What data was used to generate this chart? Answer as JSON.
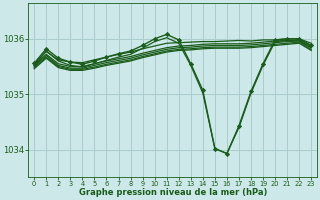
{
  "background_color": "#cce8e8",
  "grid_color": "#aacccc",
  "line_color": "#1a5c1a",
  "marker_color": "#1a5c1a",
  "xlabel": "Graphe pression niveau de la mer (hPa)",
  "xlim": [
    -0.5,
    23.5
  ],
  "ylim": [
    1033.5,
    1036.65
  ],
  "yticks": [
    1034,
    1035,
    1036
  ],
  "xticks": [
    0,
    1,
    2,
    3,
    4,
    5,
    6,
    7,
    8,
    9,
    10,
    11,
    12,
    13,
    14,
    15,
    16,
    17,
    18,
    19,
    20,
    21,
    22,
    23
  ],
  "series": [
    {
      "x": [
        0,
        1,
        2,
        3,
        4,
        5,
        6,
        7,
        8,
        9,
        10,
        11,
        12,
        13,
        14,
        15,
        16,
        17,
        18,
        19,
        20,
        21,
        22,
        23
      ],
      "y": [
        1035.55,
        1035.77,
        1035.62,
        1035.58,
        1035.57,
        1035.62,
        1035.67,
        1035.72,
        1035.76,
        1035.82,
        1035.87,
        1035.92,
        1035.93,
        1035.94,
        1035.95,
        1035.95,
        1035.96,
        1035.97,
        1035.96,
        1035.98,
        1035.98,
        1036.0,
        1036.0,
        1035.92
      ],
      "has_markers": false,
      "lw": 0.9
    },
    {
      "x": [
        0,
        1,
        2,
        3,
        4,
        5,
        6,
        7,
        8,
        9,
        10,
        11,
        12,
        13,
        14,
        15,
        16,
        17,
        18,
        19,
        20,
        21,
        22,
        23
      ],
      "y": [
        1035.52,
        1035.72,
        1035.55,
        1035.5,
        1035.5,
        1035.55,
        1035.6,
        1035.64,
        1035.68,
        1035.74,
        1035.79,
        1035.84,
        1035.87,
        1035.88,
        1035.9,
        1035.91,
        1035.91,
        1035.91,
        1035.92,
        1035.94,
        1035.96,
        1035.97,
        1035.98,
        1035.87
      ],
      "has_markers": false,
      "lw": 0.9
    },
    {
      "x": [
        0,
        1,
        2,
        3,
        4,
        5,
        6,
        7,
        8,
        9,
        10,
        11,
        12,
        13,
        14,
        15,
        16,
        17,
        18,
        19,
        20,
        21,
        22,
        23
      ],
      "y": [
        1035.5,
        1035.7,
        1035.52,
        1035.47,
        1035.47,
        1035.52,
        1035.57,
        1035.61,
        1035.65,
        1035.71,
        1035.76,
        1035.81,
        1035.84,
        1035.85,
        1035.87,
        1035.88,
        1035.88,
        1035.88,
        1035.89,
        1035.91,
        1035.93,
        1035.95,
        1035.96,
        1035.84
      ],
      "has_markers": false,
      "lw": 0.9
    },
    {
      "x": [
        0,
        1,
        2,
        3,
        4,
        5,
        6,
        7,
        8,
        9,
        10,
        11,
        12,
        13,
        14,
        15,
        16,
        17,
        18,
        19,
        20,
        21,
        22,
        23
      ],
      "y": [
        1035.48,
        1035.67,
        1035.5,
        1035.45,
        1035.45,
        1035.49,
        1035.54,
        1035.58,
        1035.62,
        1035.68,
        1035.73,
        1035.78,
        1035.81,
        1035.82,
        1035.84,
        1035.85,
        1035.85,
        1035.85,
        1035.86,
        1035.88,
        1035.9,
        1035.92,
        1035.94,
        1035.81
      ],
      "has_markers": false,
      "lw": 0.9
    },
    {
      "x": [
        0,
        1,
        2,
        3,
        4,
        5,
        6,
        7,
        8,
        9,
        10,
        11,
        12,
        13,
        14,
        15,
        16,
        17,
        18,
        19,
        20,
        21,
        22,
        23
      ],
      "y": [
        1035.46,
        1035.65,
        1035.48,
        1035.43,
        1035.43,
        1035.47,
        1035.52,
        1035.56,
        1035.6,
        1035.66,
        1035.71,
        1035.76,
        1035.79,
        1035.8,
        1035.82,
        1035.83,
        1035.83,
        1035.83,
        1035.84,
        1035.86,
        1035.88,
        1035.9,
        1035.92,
        1035.79
      ],
      "has_markers": false,
      "lw": 0.9
    },
    {
      "x": [
        0,
        1,
        2,
        3,
        4,
        5,
        6,
        7,
        8,
        9,
        10,
        11,
        12,
        13,
        14,
        15,
        16,
        17,
        18,
        19,
        20,
        21,
        22,
        23
      ],
      "y": [
        1035.56,
        1035.82,
        1035.65,
        1035.58,
        1035.54,
        1035.6,
        1035.67,
        1035.73,
        1035.78,
        1035.88,
        1036.0,
        1036.08,
        1035.98,
        1035.55,
        1035.07,
        1034.02,
        1033.93,
        1034.43,
        1035.05,
        1035.55,
        1035.98,
        1036.0,
        1036.0,
        1035.88
      ],
      "has_markers": true,
      "lw": 1.0
    },
    {
      "x": [
        0,
        1,
        2,
        3,
        4,
        5,
        6,
        7,
        8,
        9,
        10,
        11,
        12,
        13,
        14,
        15,
        16,
        17,
        18,
        19,
        20,
        21,
        22,
        23
      ],
      "y": [
        1035.52,
        1035.78,
        1035.6,
        1035.52,
        1035.49,
        1035.55,
        1035.61,
        1035.67,
        1035.72,
        1035.83,
        1035.95,
        1036.02,
        1035.92,
        1035.52,
        1035.02,
        1034.02,
        1033.93,
        1034.4,
        1035.02,
        1035.52,
        1035.95,
        1035.97,
        1035.97,
        1035.84
      ],
      "has_markers": false,
      "lw": 0.9
    }
  ]
}
